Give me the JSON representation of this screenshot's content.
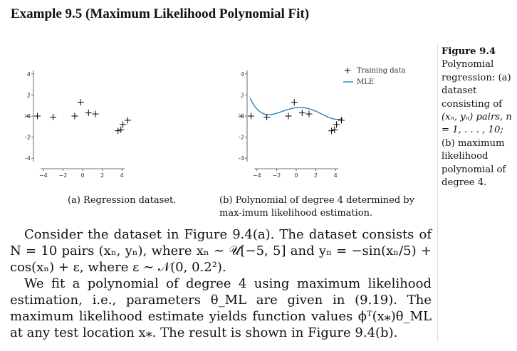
{
  "heading": "Example 9.5 (Maximum Likelihood Polynomial Fit)",
  "chart_data": [
    {
      "type": "scatter",
      "panel": "a",
      "xlabel": "x",
      "ylabel": "y",
      "xlim": [
        -5,
        5
      ],
      "ylim": [
        -5,
        5
      ],
      "xticks": [
        -4,
        -2,
        0,
        2,
        4
      ],
      "yticks": [
        -4,
        -2,
        0,
        2,
        4
      ],
      "series": [
        {
          "name": "Training data",
          "marker": "+",
          "points": [
            [
              -4.6,
              0.0
            ],
            [
              -3.0,
              -0.1
            ],
            [
              -0.8,
              0.0
            ],
            [
              -0.2,
              1.3
            ],
            [
              0.6,
              0.3
            ],
            [
              1.3,
              0.2
            ],
            [
              3.6,
              -1.4
            ],
            [
              3.9,
              -1.3
            ],
            [
              4.1,
              -0.8
            ],
            [
              4.6,
              -0.4
            ]
          ]
        }
      ]
    },
    {
      "type": "line",
      "panel": "b",
      "xlabel": "x",
      "ylabel": "y",
      "xlim": [
        -5,
        5
      ],
      "ylim": [
        -5,
        5
      ],
      "xticks": [
        -4,
        -2,
        0,
        2,
        4
      ],
      "yticks": [
        -4,
        -2,
        0,
        2,
        4
      ],
      "legend": "top-right",
      "series": [
        {
          "name": "Training data",
          "marker": "+",
          "points": [
            [
              -4.6,
              0.0
            ],
            [
              -3.0,
              -0.1
            ],
            [
              -0.8,
              0.0
            ],
            [
              -0.2,
              1.3
            ],
            [
              0.6,
              0.3
            ],
            [
              1.3,
              0.2
            ],
            [
              3.6,
              -1.4
            ],
            [
              3.9,
              -1.3
            ],
            [
              4.1,
              -0.8
            ],
            [
              4.6,
              -0.4
            ]
          ]
        },
        {
          "name": "MLE",
          "color": "#1f77b4",
          "polynomial_coefficients": [
            0.7924,
            0.1036,
            -0.1325,
            -0.0141,
            0.0059
          ]
        }
      ]
    }
  ],
  "captions": {
    "a": "(a) Regression dataset.",
    "b": "(b) Polynomial of degree 4 determined by max-imum likelihood estimation."
  },
  "sidenote": {
    "figure": "Figure 9.4",
    "text_before_math": "Polynomial regression: (a) dataset consisting of",
    "math": "(xₙ, yₙ) pairs, n = 1, . . . , 10;",
    "text_after_math": "(b) maximum likelihood polynomial of degree 4."
  },
  "body": {
    "p1": "Consider the dataset in Figure 9.4(a). The dataset consists of N = 10 pairs (xₙ, yₙ), where xₙ ∼ 𝒰[−5, 5] and yₙ = −sin(xₙ/5) + cos(xₙ) + ε, where ε ∼ 𝒩(0, 0.2²).",
    "p2": "We fit a polynomial of degree 4 using maximum likelihood estimation, i.e., parameters θ_ML are given in (9.19). The maximum likelihood estimate yields function values ϕᵀ(x⁎)θ_ML at any test location x⁎. The result is shown in Figure 9.4(b)."
  }
}
